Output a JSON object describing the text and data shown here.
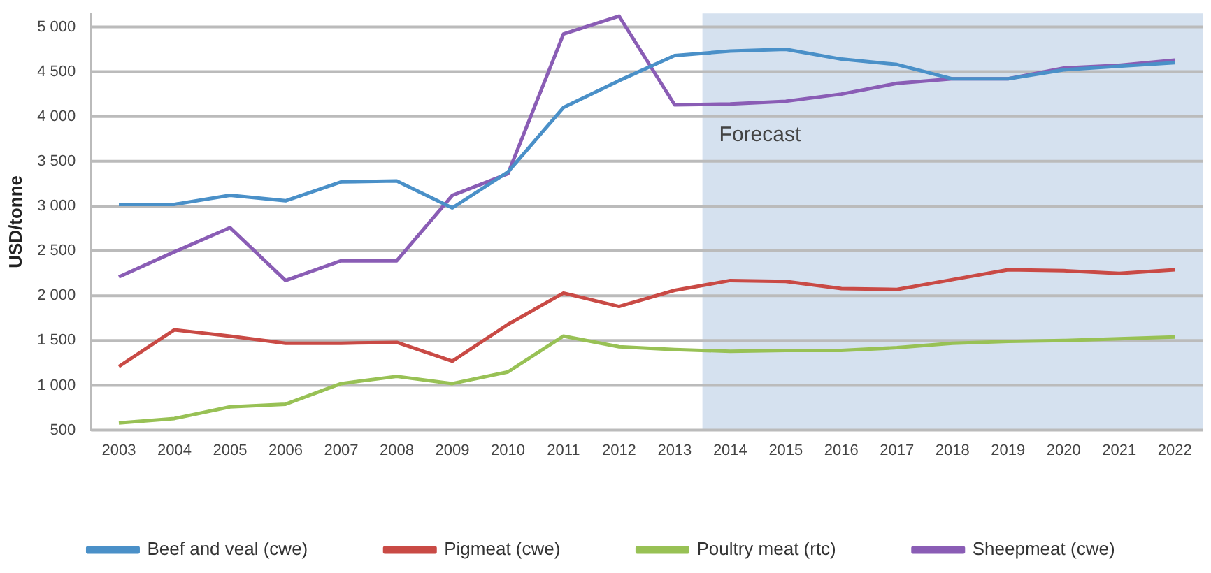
{
  "chart_data": {
    "type": "line",
    "ylabel": "USD/tonne",
    "x": [
      2003,
      2004,
      2005,
      2006,
      2007,
      2008,
      2009,
      2010,
      2011,
      2012,
      2013,
      2014,
      2015,
      2016,
      2017,
      2018,
      2019,
      2020,
      2021,
      2022
    ],
    "xlim": [
      2002.5,
      2022.5
    ],
    "xticks": [
      2003,
      2004,
      2005,
      2006,
      2007,
      2008,
      2009,
      2010,
      2011,
      2012,
      2013,
      2014,
      2015,
      2016,
      2017,
      2018,
      2019,
      2020,
      2021,
      2022
    ],
    "ylim": [
      500,
      5150
    ],
    "yticks": [
      500,
      {
        "value": 1000,
        "label": "1 000"
      },
      {
        "value": 1500,
        "label": "1 500"
      },
      {
        "value": 2000,
        "label": "2 000"
      },
      {
        "value": 2500,
        "label": "2 500"
      },
      {
        "value": 3000,
        "label": "3 000"
      },
      {
        "value": 3500,
        "label": "3 500"
      },
      {
        "value": 4000,
        "label": "4 000"
      },
      {
        "value": 4500,
        "label": "4 500"
      },
      {
        "value": 5000,
        "label": "5 000"
      }
    ],
    "series": [
      {
        "name": "Beef and veal (cwe)",
        "color": "#4a90c8",
        "values": [
          3020,
          3020,
          3120,
          3060,
          3270,
          3280,
          2980,
          3380,
          4100,
          4400,
          4680,
          4730,
          4750,
          4640,
          4580,
          4420,
          4420,
          4520,
          4560,
          4600
        ]
      },
      {
        "name": "Pigmeat (cwe)",
        "color": "#c94a45",
        "values": [
          1210,
          1620,
          1550,
          1470,
          1470,
          1480,
          1270,
          1680,
          2030,
          1880,
          2060,
          2170,
          2160,
          2080,
          2070,
          2180,
          2290,
          2280,
          2250,
          2290
        ]
      },
      {
        "name": "Poultry meat (rtc)",
        "color": "#98c155",
        "values": [
          580,
          630,
          760,
          790,
          1020,
          1100,
          1020,
          1150,
          1550,
          1430,
          1400,
          1380,
          1390,
          1390,
          1420,
          1470,
          1490,
          1500,
          1520,
          1540
        ]
      },
      {
        "name": "Sheepmeat (cwe)",
        "color": "#8a5db5",
        "values": [
          2210,
          2490,
          2760,
          2170,
          2390,
          2390,
          3120,
          3360,
          4920,
          5120,
          4130,
          4140,
          4170,
          4250,
          4370,
          4420,
          4420,
          4540,
          4570,
          4630
        ]
      }
    ],
    "bands": [
      {
        "axis": "x",
        "from": 2013.5,
        "to": 2022.5,
        "label": "Forecast",
        "color": "#d5e1ef"
      }
    ],
    "grid": "y",
    "legend": "bottom",
    "marker": "none",
    "line_style": "solid"
  }
}
